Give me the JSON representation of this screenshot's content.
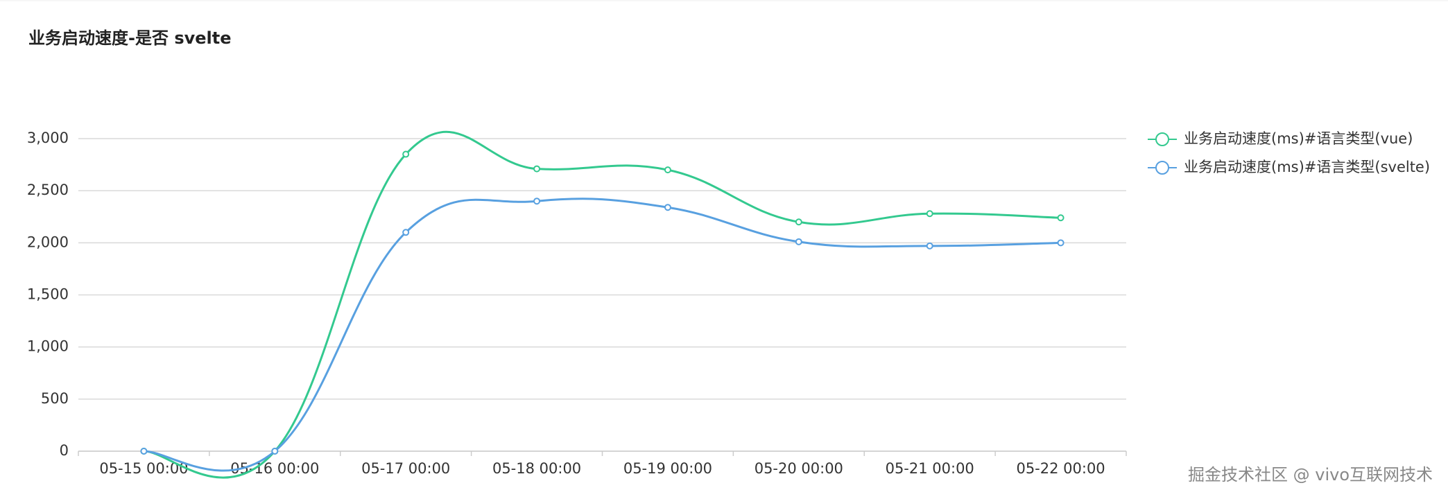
{
  "chart_data": {
    "type": "line",
    "title": "业务启动速度-是否 svelte",
    "categories": [
      "05-15 00:00",
      "05-16 00:00",
      "05-17 00:00",
      "05-18 00:00",
      "05-19 00:00",
      "05-20 00:00",
      "05-21 00:00",
      "05-22 00:00"
    ],
    "series": [
      {
        "name": "业务启动速度(ms)#语言类型(vue)",
        "color": "#33c98f",
        "values": [
          0,
          0,
          2850,
          2710,
          2700,
          2200,
          2280,
          2240
        ]
      },
      {
        "name": "业务启动速度(ms)#语言类型(svelte)",
        "color": "#58a0e0",
        "values": [
          0,
          0,
          2100,
          2400,
          2340,
          2010,
          1970,
          2000
        ]
      }
    ],
    "ylim": [
      0,
      3000
    ],
    "yticks": [
      0,
      500,
      {
        "value": 1000,
        "label": "1,000"
      },
      {
        "value": 1500,
        "label": "1,500"
      },
      {
        "value": 2000,
        "label": "2,000"
      },
      {
        "value": 2500,
        "label": "2,500"
      },
      {
        "value": 3000,
        "label": "3,000"
      }
    ],
    "grid": true,
    "legend": "right",
    "watermark": "掘金技术社区 @ vivo互联网技术"
  }
}
